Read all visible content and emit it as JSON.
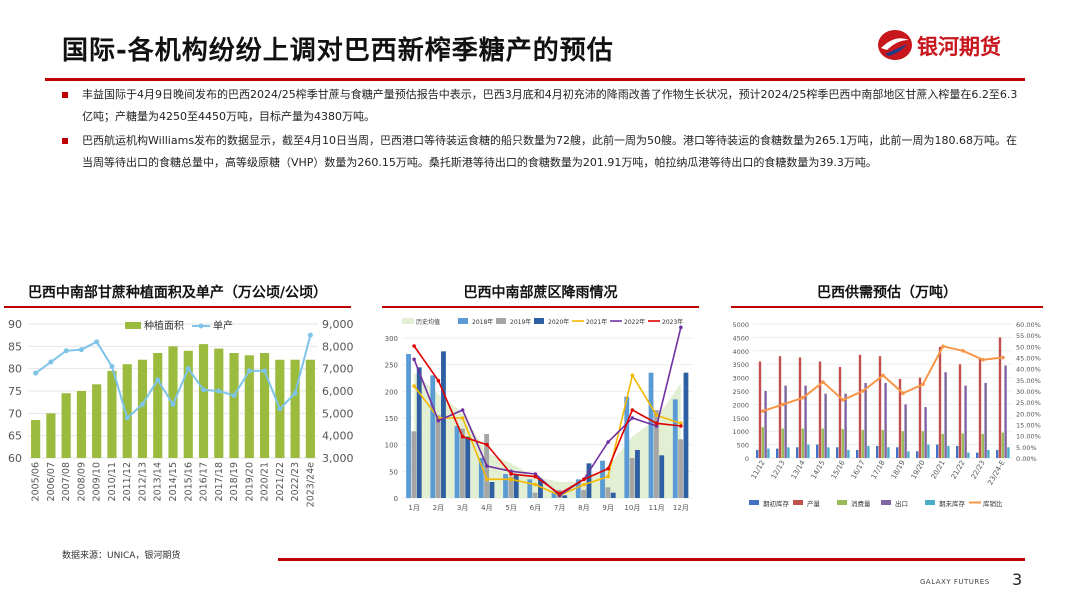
{
  "slide": {
    "title": "国际-各机构纷纷上调对巴西新榨季糖产的预估",
    "logo_text": "银河期货",
    "bullets": [
      "丰益国际于4月9日晚间发布的巴西2024/25榨季甘蔗与食糖产量预估报告中表示，巴西3月底和4月初充沛的降雨改善了作物生长状况，预计2024/25榨季巴西中南部地区甘蔗入榨量在6.2至6.3亿吨；产糖量为4250至4450万吨，目标产量为4380万吨。",
      "巴西航运机构Williams发布的数据显示，截至4月10日当周，巴西港口等待装运食糖的船只数量为72艘，此前一周为50艘。港口等待装运的食糖数量为265.1万吨，此前一周为180.68万吨。在当周等待出口的食糖总量中，高等级原糖（VHP）数量为260.15万吨。桑托斯港等待出口的食糖数量为201.91万吨，帕拉纳瓜港等待出口的食糖数量为39.3万吨。"
    ],
    "source": "数据来源：UNICA，银河期货",
    "footer_brand": "GALAXY FUTURES",
    "page_number": "3",
    "colors": {
      "accent": "#c00000",
      "bar_green": "#9bbb3f",
      "line_blue": "#7ec4e8"
    }
  },
  "chart_data": [
    {
      "type": "bar",
      "title": "巴西中南部甘蔗种植面积及单产（万公顷/公顷）",
      "categories": [
        "2005/06",
        "2006/07",
        "2007/08",
        "2008/09",
        "2009/10",
        "2010/11",
        "2011/12",
        "2012/13",
        "2013/14",
        "2014/15",
        "2015/16",
        "2016/17",
        "2017/18",
        "2018/19",
        "2019/20",
        "2020/21",
        "2021/22",
        "2022/23",
        "2023/24e"
      ],
      "series": [
        {
          "name": "种植面积",
          "type": "bar",
          "axis": "left",
          "values": [
            68.5,
            70,
            74.5,
            75,
            76.5,
            79.5,
            81,
            82,
            83.5,
            85,
            84,
            85.5,
            84.5,
            83.5,
            83,
            83.5,
            82,
            82,
            82
          ]
        },
        {
          "name": "单产",
          "type": "line",
          "axis": "right",
          "values": [
            6800,
            7300,
            7800,
            7850,
            8200,
            7100,
            4800,
            5400,
            6500,
            5400,
            7000,
            6050,
            6000,
            5800,
            6900,
            6900,
            5200,
            5900,
            8500
          ]
        }
      ],
      "ylim_left": [
        60,
        90
      ],
      "ylim_right": [
        3000,
        9000
      ],
      "yticks_left": [
        "90",
        "85",
        "80",
        "75",
        "70",
        "65",
        "60"
      ],
      "yticks_right": [
        "9,000",
        "8,000",
        "7,000",
        "6,000",
        "5,000",
        "4,000",
        "3,000"
      ]
    },
    {
      "type": "bar",
      "title": "巴西中南部蔗区降雨情况",
      "categories": [
        "1月",
        "2月",
        "3月",
        "4月",
        "5月",
        "6月",
        "7月",
        "8月",
        "9月",
        "10月",
        "11月",
        "12月"
      ],
      "ylim": [
        0,
        300
      ],
      "yticks": [
        "300",
        "250",
        "200",
        "150",
        "100",
        "50",
        "0"
      ],
      "area": {
        "name": "历史均值",
        "values": [
          235,
          195,
          160,
          85,
          65,
          40,
          30,
          30,
          60,
          115,
          150,
          215
        ]
      },
      "series": [
        {
          "name": "2018年",
          "type": "bar",
          "color": "#5b9bd5",
          "values": [
            270,
            230,
            135,
            75,
            45,
            35,
            10,
            35,
            70,
            190,
            235,
            185
          ]
        },
        {
          "name": "2019年",
          "type": "bar",
          "color": "#a5a5a5",
          "values": [
            125,
            155,
            130,
            120,
            40,
            10,
            15,
            15,
            20,
            75,
            165,
            110
          ]
        },
        {
          "name": "2020年",
          "type": "bar",
          "color": "#2e5fa3",
          "values": [
            245,
            275,
            115,
            30,
            45,
            35,
            5,
            65,
            10,
            90,
            80,
            235
          ]
        },
        {
          "name": "2021年",
          "type": "line",
          "color": "#f2b800",
          "values": [
            210,
            150,
            150,
            35,
            35,
            25,
            5,
            25,
            40,
            230,
            155,
            140
          ]
        },
        {
          "name": "2022年",
          "type": "line",
          "color": "#7030a0",
          "values": [
            260,
            145,
            165,
            60,
            50,
            45,
            5,
            35,
            105,
            150,
            135,
            320
          ]
        },
        {
          "name": "2023年",
          "type": "line",
          "color": "#e00000",
          "values": [
            285,
            220,
            115,
            100,
            45,
            40,
            8,
            35,
            55,
            165,
            140,
            135
          ]
        }
      ]
    },
    {
      "type": "bar",
      "title": "巴西供需预估（万吨）",
      "categories": [
        "11/12",
        "12/13",
        "13/14",
        "14/15",
        "15/16",
        "16/17",
        "17/18",
        "18/19",
        "19/20",
        "20/21",
        "21/22",
        "22/23",
        "23/24-E"
      ],
      "ylim_left": [
        0,
        5000
      ],
      "ylim_right": [
        0,
        60
      ],
      "yticks_left": [
        "5000",
        "4500",
        "4000",
        "3500",
        "3000",
        "2500",
        "2000",
        "1500",
        "1000",
        "500",
        "0"
      ],
      "yticks_right": [
        "60.00%",
        "55.00%",
        "50.00%",
        "45.00%",
        "40.00%",
        "35.00%",
        "30.00%",
        "25.00%",
        "20.00%",
        "15.00%",
        "10.00%",
        "5.00%",
        "0.00%"
      ],
      "series": [
        {
          "name": "期初库存",
          "type": "bar",
          "color": "#4472c4",
          "values": [
            300,
            350,
            400,
            500,
            400,
            300,
            450,
            400,
            250,
            500,
            450,
            200,
            300
          ]
        },
        {
          "name": "产量",
          "type": "bar",
          "color": "#c0504d",
          "values": [
            3600,
            3800,
            3750,
            3600,
            3400,
            3850,
            3800,
            2950,
            3000,
            4150,
            3500,
            3700,
            4500
          ]
        },
        {
          "name": "消费量",
          "type": "bar",
          "color": "#9bbb59",
          "values": [
            1150,
            1100,
            1100,
            1100,
            1080,
            1050,
            1050,
            1000,
            1000,
            900,
            920,
            900,
            950
          ]
        },
        {
          "name": "出口",
          "type": "bar",
          "color": "#8064a2",
          "values": [
            2500,
            2700,
            2700,
            2400,
            2400,
            2800,
            2800,
            2000,
            1900,
            3200,
            2700,
            2800,
            3450
          ]
        },
        {
          "name": "期末库存",
          "type": "bar",
          "color": "#4bacc6",
          "values": [
            350,
            400,
            500,
            400,
            300,
            450,
            400,
            250,
            500,
            450,
            200,
            300,
            400
          ]
        },
        {
          "name": "库销比",
          "type": "line",
          "axis": "right",
          "color": "#f79646",
          "values": [
            21,
            24,
            27,
            34,
            26,
            30,
            37,
            29,
            33,
            50,
            48,
            44,
            45
          ]
        }
      ]
    }
  ]
}
